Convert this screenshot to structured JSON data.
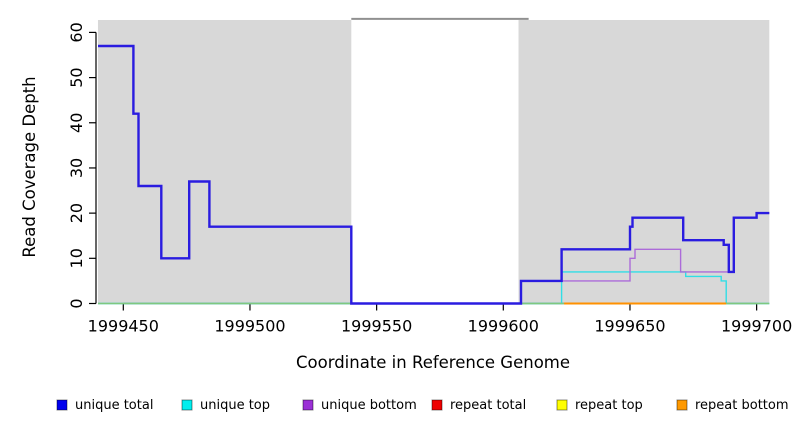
{
  "chart": {
    "xlabel": "Coordinate in Reference Genome",
    "ylabel": "Read Coverage Depth"
  },
  "chart_data": {
    "type": "line",
    "step": true,
    "title": "",
    "xlabel": "Coordinate in Reference Genome",
    "ylabel": "Read Coverage Depth",
    "xlim": [
      1999440,
      1999705
    ],
    "ylim": [
      0,
      62
    ],
    "grid": false,
    "x_ticks": [
      1999450,
      1999500,
      1999550,
      1999600,
      1999650,
      1999700
    ],
    "y_ticks": [
      0,
      10,
      20,
      30,
      40,
      50,
      60
    ],
    "shaded_regions": [
      [
        1999440,
        1999540
      ],
      [
        1999606,
        1999705
      ]
    ],
    "unshaded_gap": [
      1999540,
      1999606
    ],
    "gap_top_line": {
      "from": 1999540,
      "to": 1999610,
      "value": 63
    },
    "series": [
      {
        "name": "unique-top",
        "label": "unique top",
        "color": "#30DEE6",
        "width": 1.4,
        "visible": true,
        "points": [
          [
            1999440,
            0
          ],
          [
            1999623,
            7
          ],
          [
            1999672,
            6
          ],
          [
            1999686,
            5
          ],
          [
            1999688,
            0
          ]
        ],
        "end": 1999705
      },
      {
        "name": "unique-bottom",
        "label": "unique bottom",
        "color": "#AC6BD9",
        "width": 1.4,
        "visible": true,
        "points": [
          [
            1999607,
            5
          ],
          [
            1999650,
            10
          ],
          [
            1999652,
            12
          ],
          [
            1999670,
            7
          ],
          [
            1999691,
            19
          ],
          [
            1999700,
            20
          ]
        ],
        "end": 1999705
      },
      {
        "name": "repeat-total",
        "label": "repeat total",
        "color": "#EE0000",
        "width": 1.4,
        "visible": false,
        "points": [
          [
            1999440,
            0
          ]
        ],
        "end": 1999705
      },
      {
        "name": "repeat-top",
        "label": "repeat top",
        "color": "#FFFF00",
        "width": 1.4,
        "visible": false,
        "points": [
          [
            1999440,
            0
          ]
        ],
        "end": 1999705
      },
      {
        "name": "zero-baseline",
        "label": "",
        "color": "#7FC87F",
        "width": 1.4,
        "visible": true,
        "points": [
          [
            1999440,
            0
          ]
        ],
        "end": 1999705
      },
      {
        "name": "repeat-bottom",
        "label": "repeat bottom",
        "color": "#FF9100",
        "width": 2,
        "visible": true,
        "points": [
          [
            1999624,
            0
          ]
        ],
        "end": 1999688
      },
      {
        "name": "unique-total",
        "label": "unique total",
        "color": "#2A1CE0",
        "width": 2.4,
        "visible": true,
        "points": [
          [
            1999440,
            57
          ],
          [
            1999454,
            42
          ],
          [
            1999456,
            26
          ],
          [
            1999465,
            10
          ],
          [
            1999476,
            27
          ],
          [
            1999484,
            17
          ],
          [
            1999540,
            0
          ],
          [
            1999607,
            5
          ],
          [
            1999623,
            12
          ],
          [
            1999650,
            17
          ],
          [
            1999651,
            19
          ],
          [
            1999671,
            14
          ],
          [
            1999687,
            13
          ],
          [
            1999689,
            7
          ],
          [
            1999691,
            19
          ],
          [
            1999700,
            20
          ]
        ],
        "end": 1999705
      }
    ],
    "colors": {
      "region_bg": "#D8D8D8",
      "gap_top_line": "#909090",
      "axis": "#000000"
    }
  },
  "legend": {
    "entries": [
      {
        "label": "unique total",
        "color": "#0000EE"
      },
      {
        "label": "unique top",
        "color": "#00EEEE"
      },
      {
        "label": "unique bottom",
        "color": "#9B30D6"
      },
      {
        "label": "repeat total",
        "color": "#EE0000"
      },
      {
        "label": "repeat top",
        "color": "#FFFF00"
      },
      {
        "label": "repeat bottom",
        "color": "#FF9900"
      }
    ],
    "swatch_x": [
      57,
      182,
      303,
      432,
      557,
      677
    ],
    "swatch_y": 400,
    "swatch_size": 10
  }
}
